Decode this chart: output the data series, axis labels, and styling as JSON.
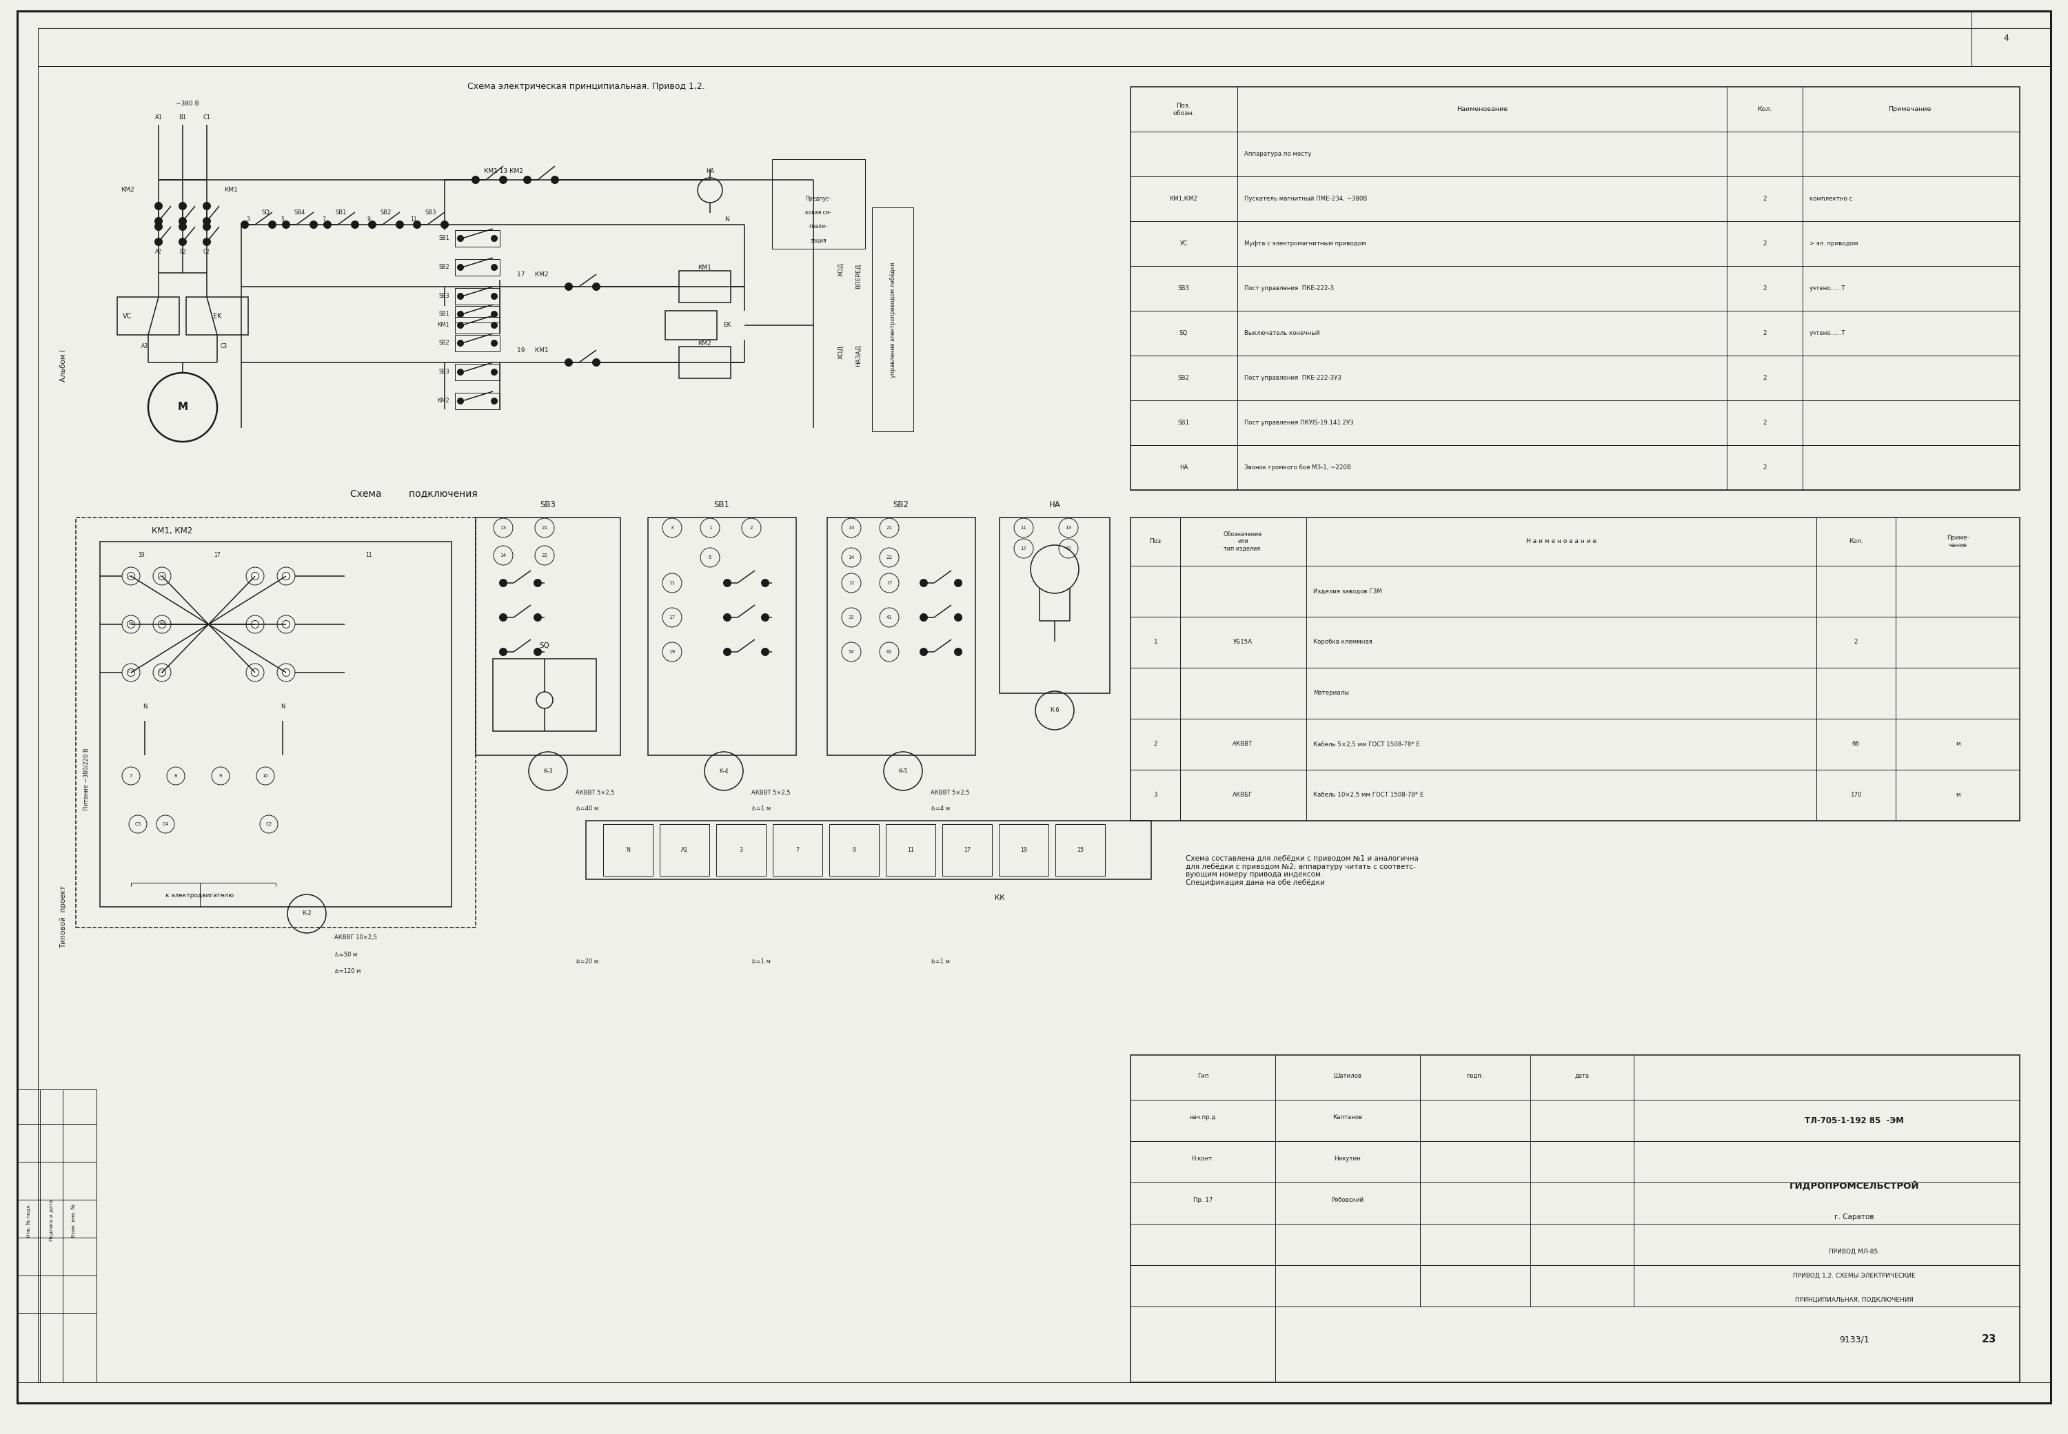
{
  "bg_color": "#f0f0eb",
  "line_color": "#1a1a1a",
  "title1": "Схема электрическая принципиальная. Привод 1,2.",
  "title2": "Схема         подключения",
  "voltage_label": "~380 В",
  "phase_labels": [
    "А1",
    "В1",
    "С1"
  ],
  "album_label": "Альбом I",
  "tipi_label": "Типовой  проект",
  "spec_table1_rows": [
    [
      "",
      "Аппаратура по месту",
      "",
      ""
    ],
    [
      "КМ1,КМ2",
      "Пускатель магнитный ПМЕ-234, ~380В",
      "2",
      "комплектно с"
    ],
    [
      "УС",
      "Муфта с электромагнитным приводом",
      "2",
      "> эл. приводом"
    ],
    [
      "SB3",
      "Пост управления  ПКЕ-222-3",
      "2",
      "учтено......Т"
    ],
    [
      "SQ",
      "Выключатель конечный",
      "2",
      "учтено......Т"
    ],
    [
      "SB2",
      "Пост управления  ПКЕ-222-3У3",
      "2",
      ""
    ],
    [
      "SB1",
      "Пост управления ПКУIS-19.141.2У3",
      "2",
      ""
    ],
    [
      "НА",
      "Звонок громкого боя МЗ-1, ~220В",
      "2",
      ""
    ]
  ],
  "spec_table2_rows": [
    [
      "",
      "",
      "Изделия заводов ГЗМ",
      "",
      ""
    ],
    [
      "1",
      "УБ15А",
      "Коробка клеммная",
      "2",
      ""
    ],
    [
      "",
      "",
      "Материалы",
      "",
      ""
    ],
    [
      "2",
      "АКВВТ",
      "Кабель 5×2,5 мм ГОСТ 1508-78* Е",
      "66",
      "м"
    ],
    [
      "3",
      "АКВБГ",
      "Кабель 10×2,5 мм ГОСТ 1508-78* Е",
      "170",
      "м"
    ]
  ],
  "note_text": "Схема составлена для лебёдки с приводом №1 и аналогична\nдля лебёдки с приводом №2; аппаратуру читать с соответс-\nвующим номеру привода индексом.\nСпецификация дана на обе лебёдки",
  "title_block": [
    "ТЛ-705-1-192 85  -ЭМ",
    "ГИДРОПРОМСЕЛЬСТРОЙ",
    "г. Саратов",
    "9133/1",
    "23"
  ],
  "tb_roles": [
    "Гип",
    "нач.пр.д",
    "Н.конт.",
    "Пр. 17"
  ],
  "tb_names": [
    "Шатилов",
    "Калтанов",
    "Никутин",
    "Рябовский"
  ],
  "cables": [
    [
      "К-2",
      "АКВВГ 10×2,5\nl1=50 м\nl2=120 м"
    ],
    [
      "К-3",
      "АКВВТ 5×2,5\nl1=40 м\nl2=20 м"
    ],
    [
      "К-4",
      "АКВВТ 5×2,5\nl1=1 м\nl2=1 м"
    ],
    [
      "К-5",
      "АКВВТ 5×2,5\nl1=4 м\nl2=1 м"
    ],
    [
      "К-6",
      ""
    ]
  ]
}
